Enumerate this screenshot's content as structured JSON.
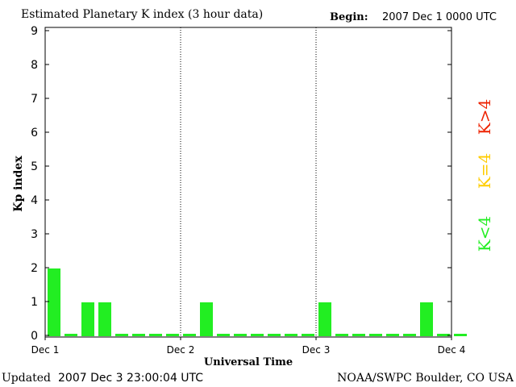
{
  "header": {
    "title": "Estimated Planetary K index (3 hour data)",
    "begin_label": "Begin:",
    "begin_value": "2007 Dec 1 0000 UTC"
  },
  "footer": {
    "updated_label": "Updated",
    "updated_value": "2007 Dec  3 23:00:04 UTC",
    "credit": "NOAA/SWPC Boulder, CO USA"
  },
  "legend": {
    "items": [
      {
        "label": "K<4",
        "color": "#22ee22"
      },
      {
        "label": "K=4",
        "color": "#ffcc00"
      },
      {
        "label": "K>4",
        "color": "#ee2200"
      }
    ]
  },
  "colors": {
    "bar": "#22ee22",
    "axis": "#000000"
  },
  "chart_data": {
    "type": "bar",
    "title": "Estimated Planetary K index (3 hour data)",
    "xlabel": "Universal Time",
    "ylabel": "Kp index",
    "ylim": [
      0,
      9
    ],
    "yticks": [
      0,
      1,
      2,
      3,
      4,
      5,
      6,
      7,
      8,
      9
    ],
    "xtick_labels": [
      "Dec 1",
      "Dec 2",
      "Dec 3",
      "Dec 4"
    ],
    "day_dividers": [
      "Dec 2",
      "Dec 3"
    ],
    "interval_hours": 3,
    "values": [
      2,
      0,
      1,
      1,
      0,
      0,
      0,
      0,
      0,
      1,
      0,
      0,
      0,
      0,
      0,
      0,
      1,
      0,
      0,
      0,
      0,
      0,
      1,
      0,
      0
    ]
  }
}
